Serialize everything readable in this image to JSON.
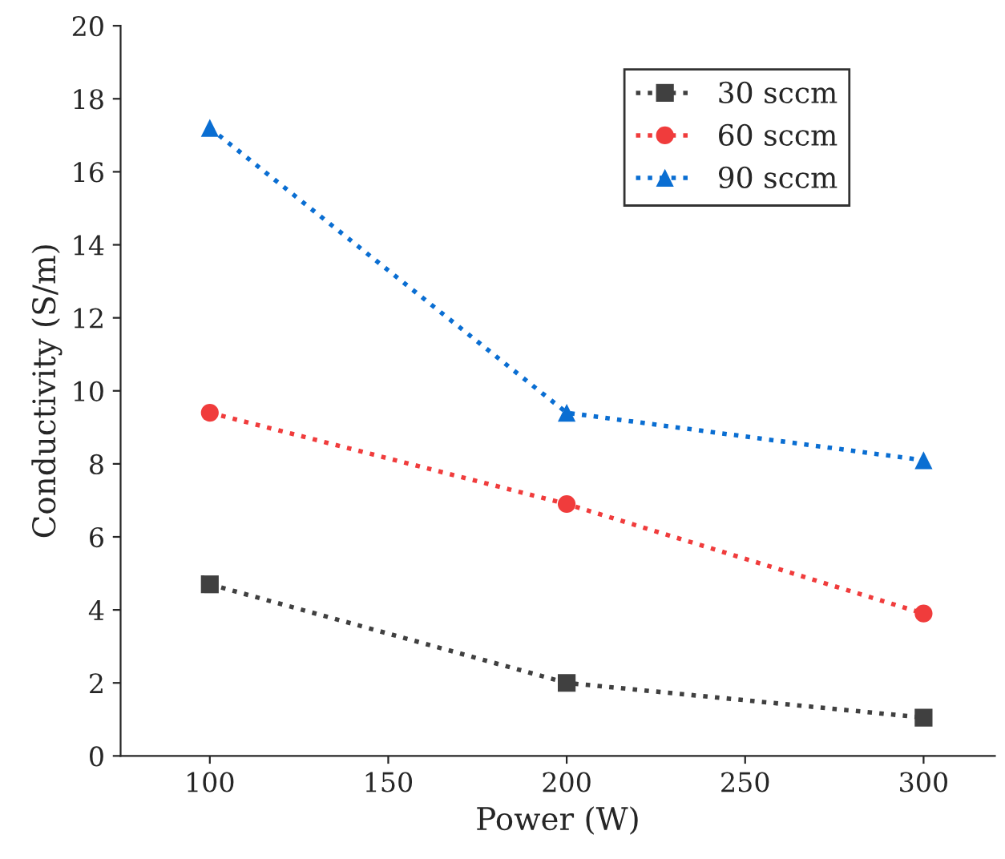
{
  "chart_data": {
    "type": "line",
    "xlabel": "Power (W)",
    "ylabel": "Conductivity (S/m)",
    "x": [
      100,
      200,
      300
    ],
    "series": [
      {
        "name": "30 sccm",
        "color": "#404040",
        "marker": "square",
        "values": [
          4.7,
          2.0,
          1.05
        ]
      },
      {
        "name": "60 sccm",
        "color": "#f03c3c",
        "marker": "circle",
        "values": [
          9.4,
          6.9,
          3.9
        ]
      },
      {
        "name": "90 sccm",
        "color": "#0a6ed2",
        "marker": "triangle",
        "values": [
          17.2,
          9.4,
          8.1
        ]
      }
    ],
    "xlim": [
      75,
      320
    ],
    "xticks": [
      100,
      150,
      200,
      250,
      300
    ],
    "ylim": [
      0,
      20
    ],
    "yticks": [
      0,
      2,
      4,
      6,
      8,
      10,
      12,
      14,
      16,
      18,
      20
    ],
    "line_style": "dotted",
    "grid": false,
    "legend": "top right"
  }
}
